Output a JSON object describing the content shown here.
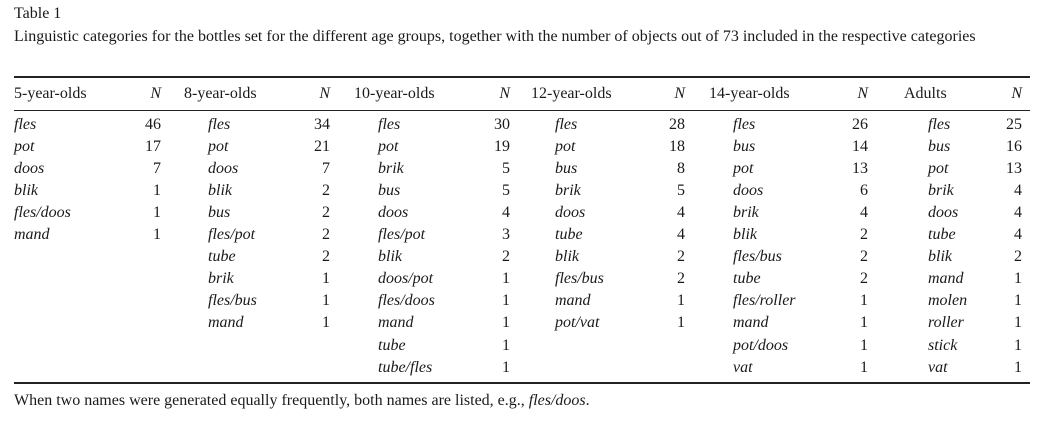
{
  "table_label": "Table 1",
  "caption": "Linguistic categories for the bottles set for the different age groups, together with the number of objects out of 73 included in the respective categories",
  "columns": [
    {
      "group": "5-year-olds",
      "n_label": "N",
      "rows": [
        [
          "fles",
          "46"
        ],
        [
          "pot",
          "17"
        ],
        [
          "doos",
          "7"
        ],
        [
          "blik",
          "1"
        ],
        [
          "fles/doos",
          "1"
        ],
        [
          "mand",
          "1"
        ]
      ]
    },
    {
      "group": "8-year-olds",
      "n_label": "N",
      "rows": [
        [
          "fles",
          "34"
        ],
        [
          "pot",
          "21"
        ],
        [
          "doos",
          "7"
        ],
        [
          "blik",
          "2"
        ],
        [
          "bus",
          "2"
        ],
        [
          "fles/pot",
          "2"
        ],
        [
          "tube",
          "2"
        ],
        [
          "brik",
          "1"
        ],
        [
          "fles/bus",
          "1"
        ],
        [
          "mand",
          "1"
        ]
      ]
    },
    {
      "group": "10-year-olds",
      "n_label": "N",
      "rows": [
        [
          "fles",
          "30"
        ],
        [
          "pot",
          "19"
        ],
        [
          "brik",
          "5"
        ],
        [
          "bus",
          "5"
        ],
        [
          "doos",
          "4"
        ],
        [
          "fles/pot",
          "3"
        ],
        [
          "blik",
          "2"
        ],
        [
          "doos/pot",
          "1"
        ],
        [
          "fles/doos",
          "1"
        ],
        [
          "mand",
          "1"
        ],
        [
          "tube",
          "1"
        ],
        [
          "tube/fles",
          "1"
        ]
      ]
    },
    {
      "group": "12-year-olds",
      "n_label": "N",
      "rows": [
        [
          "fles",
          "28"
        ],
        [
          "pot",
          "18"
        ],
        [
          "bus",
          "8"
        ],
        [
          "brik",
          "5"
        ],
        [
          "doos",
          "4"
        ],
        [
          "tube",
          "4"
        ],
        [
          "blik",
          "2"
        ],
        [
          "fles/bus",
          "2"
        ],
        [
          "mand",
          "1"
        ],
        [
          "pot/vat",
          "1"
        ]
      ]
    },
    {
      "group": "14-year-olds",
      "n_label": "N",
      "rows": [
        [
          "fles",
          "26"
        ],
        [
          "bus",
          "14"
        ],
        [
          "pot",
          "13"
        ],
        [
          "doos",
          "6"
        ],
        [
          "brik",
          "4"
        ],
        [
          "blik",
          "2"
        ],
        [
          "fles/bus",
          "2"
        ],
        [
          "tube",
          "2"
        ],
        [
          "fles/roller",
          "1"
        ],
        [
          "mand",
          "1"
        ],
        [
          "pot/doos",
          "1"
        ],
        [
          "vat",
          "1"
        ]
      ]
    },
    {
      "group": "Adults",
      "n_label": "N",
      "rows": [
        [
          "fles",
          "25"
        ],
        [
          "bus",
          "16"
        ],
        [
          "pot",
          "13"
        ],
        [
          "brik",
          "4"
        ],
        [
          "doos",
          "4"
        ],
        [
          "tube",
          "4"
        ],
        [
          "blik",
          "2"
        ],
        [
          "mand",
          "1"
        ],
        [
          "molen",
          "1"
        ],
        [
          "roller",
          "1"
        ],
        [
          "stick",
          "1"
        ],
        [
          "vat",
          "1"
        ]
      ]
    }
  ],
  "footnote": {
    "text": "When two names were generated equally frequently, both names are listed, e.g., ",
    "example": "fles/doos",
    "end": "."
  }
}
